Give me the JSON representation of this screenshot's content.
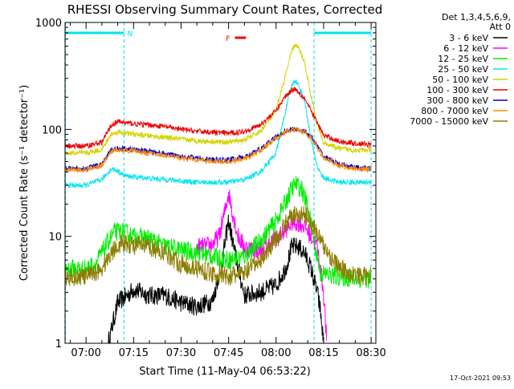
{
  "chart_data": {
    "type": "line",
    "title": "RHESSI Observing Summary Count Rates, Corrected",
    "xlabel": "Start Time (11-May-04 06:53:22)",
    "ylabel": "Corrected Count Rate (s⁻¹ detector⁻¹)",
    "y_scale": "log",
    "ylim": [
      1,
      1000
    ],
    "xlim": [
      "06:53:22",
      "08:31:30"
    ],
    "x_ticks": [
      "07:00",
      "07:15",
      "07:30",
      "07:45",
      "08:00",
      "08:15",
      "08:30"
    ],
    "y_ticks": [
      "1",
      "10",
      "100",
      "1000"
    ],
    "timestamp": "17-Oct-2021 09:53",
    "legend": {
      "placement": "right, outside plot",
      "header": [
        "Det 1,3,4,5,6,9,",
        "Att 0"
      ],
      "entries": [
        {
          "label": "3 - 6 keV",
          "color": "#000000"
        },
        {
          "label": "6 - 12 keV",
          "color": "#ff00ff"
        },
        {
          "label": "12 - 25 keV",
          "color": "#00ee00"
        },
        {
          "label": "25 - 50 keV",
          "color": "#00e5ee"
        },
        {
          "label": "50 - 100 keV",
          "color": "#d4d400"
        },
        {
          "label": "100 - 300 keV",
          "color": "#ee0000"
        },
        {
          "label": "300 - 800 keV",
          "color": "#0000cc"
        },
        {
          "label": "800 - 7000 keV",
          "color": "#ff8800"
        },
        {
          "label": "7000 - 15000 keV",
          "color": "#8b7d00"
        }
      ]
    },
    "annotations": {
      "flags_row": [
        {
          "label": "N",
          "from": "06:53:22",
          "to": "07:12:00",
          "color": "#00e5ee"
        },
        {
          "label": "F",
          "from": "07:47:00",
          "to": "07:50:30",
          "color": "#ee0000"
        },
        {
          "label": "",
          "from": "08:12:00",
          "to": "08:30:00",
          "color": "#00e5ee"
        }
      ],
      "night_boundaries": [
        "06:53:30",
        "07:12:00",
        "08:12:00",
        "08:30:00"
      ],
      "night_boundary_color": "#00e5ee"
    },
    "series": [
      {
        "name": "3 - 6 keV",
        "color": "#000000",
        "x": [
          "07:07",
          "07:10",
          "07:13",
          "07:15",
          "07:20",
          "07:25",
          "07:30",
          "07:35",
          "07:40",
          "07:43",
          "07:45",
          "07:47",
          "07:50",
          "07:55",
          "08:00",
          "08:03",
          "08:05",
          "08:07",
          "08:09",
          "08:11",
          "08:13",
          "08:14",
          "08:15"
        ],
        "y": [
          1.0,
          2.4,
          2.8,
          3.2,
          2.8,
          2.8,
          2.4,
          2.2,
          2.5,
          6,
          14,
          7,
          2.8,
          3.0,
          3.5,
          5,
          8,
          8,
          7,
          5,
          3,
          2,
          1.0
        ]
      },
      {
        "name": "6 - 12 keV",
        "color": "#ff00ff",
        "x": [
          "07:35",
          "07:38",
          "07:40",
          "07:42",
          "07:44",
          "07:45",
          "07:46",
          "07:48",
          "07:50",
          "07:53",
          "07:55",
          "08:00",
          "08:03",
          "08:05",
          "08:07",
          "08:09",
          "08:11",
          "08:13",
          "08:15",
          "08:16"
        ],
        "y": [
          8,
          8,
          8.5,
          10,
          18,
          26,
          18,
          10,
          8,
          7.5,
          7.5,
          9.5,
          11.5,
          13.5,
          13.5,
          12.5,
          10,
          8,
          3,
          1.0
        ]
      },
      {
        "name": "12 - 25 keV",
        "color": "#00ee00",
        "x": [
          "06:53",
          "06:57",
          "07:00",
          "07:03",
          "07:05",
          "07:07",
          "07:09",
          "07:12",
          "07:15",
          "07:20",
          "07:25",
          "07:30",
          "07:35",
          "07:40",
          "07:45",
          "07:50",
          "07:55",
          "08:00",
          "08:03",
          "08:05",
          "08:06",
          "08:08",
          "08:10",
          "08:12",
          "08:14",
          "08:20",
          "08:25",
          "08:28",
          "08:30"
        ],
        "y": [
          5,
          5,
          5,
          5.5,
          7,
          9,
          11,
          11,
          10,
          9.5,
          8,
          7.5,
          7,
          6.5,
          6,
          6.5,
          9,
          14,
          21,
          28,
          31,
          28,
          19,
          9,
          4.5,
          4.2,
          4.0,
          4.0,
          4.0
        ]
      },
      {
        "name": "25 - 50 keV",
        "color": "#00e5ee",
        "x": [
          "06:53",
          "07:00",
          "07:05",
          "07:08",
          "07:10",
          "07:12",
          "07:15",
          "07:20",
          "07:25",
          "07:30",
          "07:35",
          "07:40",
          "07:45",
          "07:50",
          "07:55",
          "08:00",
          "08:03",
          "08:05",
          "08:06",
          "08:07",
          "08:09",
          "08:11",
          "08:13",
          "08:15",
          "08:20",
          "08:25",
          "08:30"
        ],
        "y": [
          30,
          30,
          34,
          43,
          41,
          37,
          36,
          35,
          34,
          33,
          32,
          32,
          32,
          34,
          40,
          60,
          150,
          260,
          290,
          260,
          190,
          80,
          45,
          35,
          32,
          32,
          32
        ]
      },
      {
        "name": "50 - 100 keV",
        "color": "#d4d400",
        "x": [
          "06:53",
          "07:00",
          "07:05",
          "07:08",
          "07:10",
          "07:12",
          "07:15",
          "07:20",
          "07:25",
          "07:30",
          "07:35",
          "07:40",
          "07:45",
          "07:50",
          "07:55",
          "08:00",
          "08:03",
          "08:05",
          "08:06",
          "08:07",
          "08:09",
          "08:11",
          "08:13",
          "08:15",
          "08:20",
          "08:25",
          "08:30"
        ],
        "y": [
          60,
          60,
          65,
          90,
          95,
          92,
          90,
          87,
          84,
          81,
          78,
          77,
          76,
          80,
          95,
          150,
          320,
          550,
          620,
          580,
          430,
          210,
          110,
          75,
          66,
          64,
          64
        ]
      },
      {
        "name": "100 - 300 keV",
        "color": "#ee0000",
        "x": [
          "06:53",
          "07:00",
          "07:05",
          "07:08",
          "07:10",
          "07:12",
          "07:15",
          "07:20",
          "07:25",
          "07:30",
          "07:35",
          "07:40",
          "07:45",
          "07:50",
          "07:55",
          "08:00",
          "08:03",
          "08:05",
          "08:06",
          "08:07",
          "08:09",
          "08:11",
          "08:13",
          "08:15",
          "08:20",
          "08:25",
          "08:30"
        ],
        "y": [
          70,
          70,
          76,
          110,
          118,
          116,
          113,
          110,
          106,
          100,
          96,
          94,
          92,
          96,
          110,
          150,
          205,
          235,
          240,
          225,
          195,
          150,
          115,
          88,
          77,
          74,
          72
        ]
      },
      {
        "name": "300 - 800 keV",
        "color": "#0000cc",
        "x": [
          "06:53",
          "07:00",
          "07:05",
          "07:08",
          "07:10",
          "07:12",
          "07:15",
          "07:20",
          "07:25",
          "07:30",
          "07:35",
          "07:40",
          "07:45",
          "07:50",
          "07:55",
          "08:00",
          "08:03",
          "08:05",
          "08:07",
          "08:09",
          "08:11",
          "08:13",
          "08:15",
          "08:20",
          "08:25",
          "08:30"
        ],
        "y": [
          43,
          43,
          47,
          64,
          67,
          66,
          65,
          62,
          59,
          56,
          54,
          52,
          52,
          55,
          65,
          85,
          97,
          100,
          100,
          96,
          86,
          70,
          56,
          47,
          44,
          43
        ]
      },
      {
        "name": "800 - 7000 keV",
        "color": "#ff8800",
        "x": [
          "06:53",
          "07:00",
          "07:05",
          "07:08",
          "07:10",
          "07:12",
          "07:15",
          "07:20",
          "07:25",
          "07:30",
          "07:35",
          "07:40",
          "07:45",
          "07:50",
          "07:55",
          "08:00",
          "08:03",
          "08:05",
          "08:07",
          "08:09",
          "08:11",
          "08:13",
          "08:15",
          "08:20",
          "08:25",
          "08:30"
        ],
        "y": [
          42,
          42,
          46,
          62,
          65,
          64,
          63,
          60,
          57,
          54,
          52,
          50,
          50,
          53,
          63,
          83,
          95,
          98,
          98,
          94,
          84,
          68,
          54,
          46,
          43,
          42
        ]
      },
      {
        "name": "7000 - 15000 keV",
        "color": "#8b7d00",
        "x": [
          "06:53",
          "07:00",
          "07:05",
          "07:08",
          "07:10",
          "07:12",
          "07:15",
          "07:20",
          "07:25",
          "07:30",
          "07:35",
          "07:40",
          "07:45",
          "07:50",
          "07:55",
          "08:00",
          "08:03",
          "08:05",
          "08:07",
          "08:09",
          "08:11",
          "08:13",
          "08:15",
          "08:20",
          "08:25",
          "08:30"
        ],
        "y": [
          4.2,
          4.2,
          5,
          7,
          8.5,
          8.5,
          8.3,
          8,
          7,
          5.5,
          5,
          4.5,
          4.2,
          4.5,
          6,
          9.5,
          13,
          15.5,
          16,
          16,
          14,
          10.5,
          8,
          5,
          4.3,
          4.2
        ]
      }
    ]
  }
}
